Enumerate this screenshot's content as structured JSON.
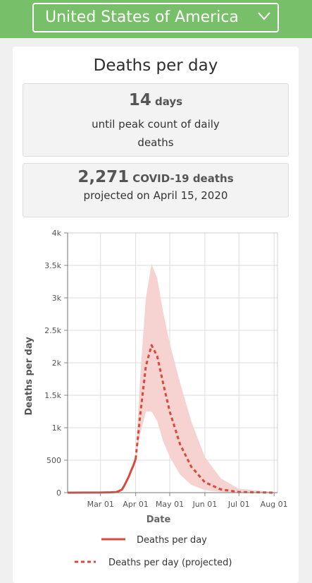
{
  "header": {
    "country": "United States of America"
  },
  "panel": {
    "title": "Deaths per day",
    "peak_days_value": "14",
    "peak_days_unit": "days",
    "peak_days_text": "until peak count of daily deaths",
    "deaths_value": "2,271",
    "deaths_unit": "COVID-19 deaths",
    "deaths_text": "projected on April 15, 2020"
  },
  "colors": {
    "header_bg": "#78bf6a",
    "line": "#d94a3c",
    "band": "#f6d3d0"
  },
  "chart_data": {
    "type": "line",
    "xlabel": "Date",
    "ylabel": "Deaths per day",
    "xlim": [
      "2020-02-01",
      "2020-08-04"
    ],
    "ylim": [
      0,
      4000
    ],
    "x_tick_labels": [
      "Mar 01",
      "Apr 01",
      "May 01",
      "Jun 01",
      "Jul 01",
      "Aug 01"
    ],
    "y_ticks": [
      0,
      500,
      1000,
      1500,
      2000,
      2500,
      3000,
      3500,
      4000
    ],
    "y_tick_labels": [
      "0",
      "500",
      "1k",
      "1.5k",
      "2k",
      "2.5k",
      "3k",
      "3.5k",
      "4k"
    ],
    "grid": true,
    "legend_position": "bottom",
    "series": [
      {
        "name": "Deaths per day",
        "style": "solid",
        "points": [
          [
            "2020-02-01",
            0
          ],
          [
            "2020-02-29",
            2
          ],
          [
            "2020-03-10",
            5
          ],
          [
            "2020-03-15",
            10
          ],
          [
            "2020-03-18",
            30
          ],
          [
            "2020-03-20",
            50
          ],
          [
            "2020-03-22",
            110
          ],
          [
            "2020-03-24",
            180
          ],
          [
            "2020-03-26",
            250
          ],
          [
            "2020-03-28",
            340
          ],
          [
            "2020-03-30",
            420
          ],
          [
            "2020-04-01",
            520
          ]
        ]
      },
      {
        "name": "Deaths per day (projected)",
        "style": "dashed",
        "points": [
          [
            "2020-04-01",
            520
          ],
          [
            "2020-04-05",
            1200
          ],
          [
            "2020-04-10",
            1950
          ],
          [
            "2020-04-15",
            2271
          ],
          [
            "2020-04-20",
            2100
          ],
          [
            "2020-04-25",
            1700
          ],
          [
            "2020-05-01",
            1250
          ],
          [
            "2020-05-10",
            750
          ],
          [
            "2020-05-20",
            400
          ],
          [
            "2020-06-01",
            160
          ],
          [
            "2020-06-15",
            50
          ],
          [
            "2020-07-01",
            10
          ],
          [
            "2020-08-01",
            0
          ]
        ]
      }
    ],
    "uncertainty_band": {
      "upper": [
        [
          "2020-04-01",
          520
        ],
        [
          "2020-04-05",
          1800
        ],
        [
          "2020-04-10",
          3000
        ],
        [
          "2020-04-15",
          3520
        ],
        [
          "2020-04-20",
          3300
        ],
        [
          "2020-04-25",
          2800
        ],
        [
          "2020-05-01",
          2300
        ],
        [
          "2020-05-10",
          1700
        ],
        [
          "2020-05-20",
          1100
        ],
        [
          "2020-06-01",
          550
        ],
        [
          "2020-06-15",
          220
        ],
        [
          "2020-07-01",
          60
        ],
        [
          "2020-08-01",
          10
        ]
      ],
      "lower": [
        [
          "2020-04-01",
          520
        ],
        [
          "2020-04-05",
          900
        ],
        [
          "2020-04-10",
          1250
        ],
        [
          "2020-04-15",
          1250
        ],
        [
          "2020-04-20",
          1100
        ],
        [
          "2020-04-25",
          800
        ],
        [
          "2020-05-01",
          550
        ],
        [
          "2020-05-10",
          280
        ],
        [
          "2020-05-20",
          120
        ],
        [
          "2020-06-01",
          40
        ],
        [
          "2020-06-15",
          10
        ],
        [
          "2020-07-01",
          0
        ],
        [
          "2020-08-01",
          0
        ]
      ]
    }
  }
}
